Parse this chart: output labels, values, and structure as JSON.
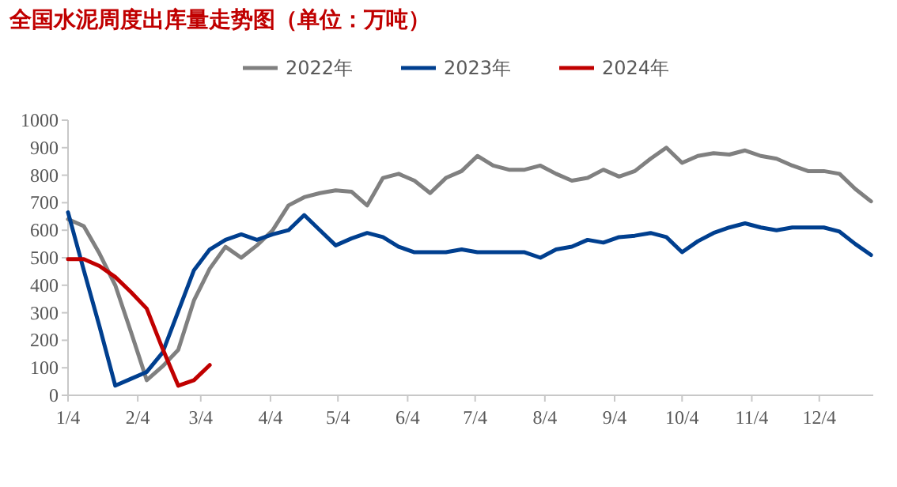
{
  "chart_data": {
    "type": "line",
    "title": "全国水泥周度出库量走势图（单位：万吨）",
    "x": [
      "--01-04",
      "--01-11",
      "--01-18",
      "--01-25",
      "--02-01",
      "--02-08",
      "--02-15",
      "--02-22",
      "--03-01",
      "--03-08",
      "--03-15",
      "--03-22",
      "--03-29",
      "--04-05",
      "--04-12",
      "--04-19",
      "--04-26",
      "--05-03",
      "--05-10",
      "--05-17",
      "--05-24",
      "--05-31",
      "--06-07",
      "--06-14",
      "--06-21",
      "--06-28",
      "--07-05",
      "--07-12",
      "--07-19",
      "--07-26",
      "--08-02",
      "--08-09",
      "--08-16",
      "--08-23",
      "--08-30",
      "--09-06",
      "--09-13",
      "--09-20",
      "--09-27",
      "--10-04",
      "--10-11",
      "--10-18",
      "--10-25",
      "--11-01",
      "--11-08",
      "--11-15",
      "--11-22",
      "--11-29",
      "--12-06",
      "--12-13",
      "--12-20",
      "--12-27"
    ],
    "series": [
      {
        "name": "2022年",
        "color": "#808080",
        "values": [
          640,
          615,
          515,
          400,
          230,
          55,
          105,
          165,
          345,
          460,
          540,
          500,
          545,
          600,
          690,
          720,
          735,
          745,
          740,
          690,
          790,
          805,
          780,
          735,
          790,
          815,
          870,
          835,
          820,
          820,
          835,
          805,
          780,
          790,
          820,
          795,
          815,
          860,
          900,
          845,
          870,
          880,
          875,
          890,
          870,
          860,
          835,
          815,
          815,
          805,
          750,
          705
        ]
      },
      {
        "name": "2023年",
        "color": "#003f8f",
        "values": [
          665,
          455,
          250,
          35,
          60,
          85,
          155,
          305,
          455,
          530,
          565,
          585,
          565,
          585,
          600,
          655,
          600,
          545,
          570,
          590,
          575,
          540,
          520,
          520,
          520,
          530,
          520,
          520,
          520,
          520,
          500,
          530,
          540,
          565,
          555,
          575,
          580,
          590,
          575,
          520,
          560,
          590,
          610,
          625,
          610,
          600,
          610,
          610,
          610,
          595,
          550,
          510
        ]
      },
      {
        "name": "2024年",
        "color": "#c00000",
        "values": [
          495,
          495,
          470,
          430,
          375,
          315,
          170,
          35,
          55,
          110,
          null,
          null,
          null,
          null,
          null,
          null,
          null,
          null,
          null,
          null,
          null,
          null,
          null,
          null,
          null,
          null,
          null,
          null,
          null,
          null,
          null,
          null,
          null,
          null,
          null,
          null,
          null,
          null,
          null,
          null,
          null,
          null,
          null,
          null,
          null,
          null,
          null,
          null,
          null,
          null,
          null,
          null
        ]
      }
    ],
    "xlim": [
      "--01-04",
      "--12-28"
    ],
    "xticks": [
      {
        "value": "--01-04",
        "label": "1/4"
      },
      {
        "value": "--02-04",
        "label": "2/4"
      },
      {
        "value": "--03-04",
        "label": "3/4"
      },
      {
        "value": "--04-04",
        "label": "4/4"
      },
      {
        "value": "--05-04",
        "label": "5/4"
      },
      {
        "value": "--06-04",
        "label": "6/4"
      },
      {
        "value": "--07-04",
        "label": "7/4"
      },
      {
        "value": "--08-04",
        "label": "8/4"
      },
      {
        "value": "--09-04",
        "label": "9/4"
      },
      {
        "value": "--10-04",
        "label": "10/4"
      },
      {
        "value": "--11-04",
        "label": "11/4"
      },
      {
        "value": "--12-04",
        "label": "12/4"
      }
    ],
    "ylim": [
      0,
      1000
    ],
    "yticks": [
      0,
      100,
      200,
      300,
      400,
      500,
      600,
      700,
      800,
      900,
      1000
    ],
    "legend": "top"
  }
}
